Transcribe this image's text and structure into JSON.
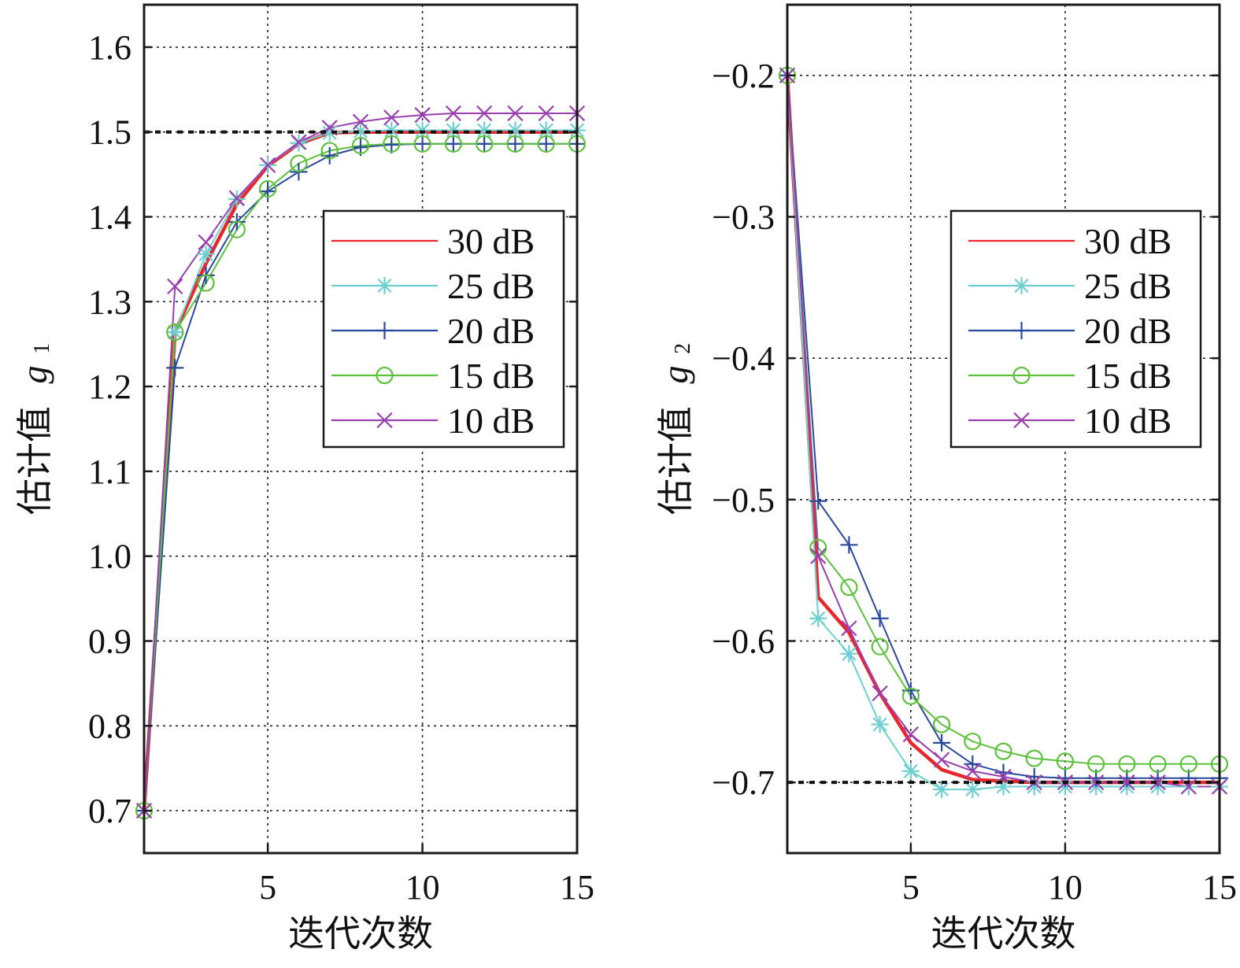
{
  "chart_data": [
    {
      "type": "line",
      "id": "g1",
      "title": "",
      "xlabel": "迭代次数",
      "ylabel": "估计值",
      "ylabel_symbol": "g",
      "ylabel_subscript": "1",
      "xlim": [
        1,
        15
      ],
      "ylim": [
        0.65,
        1.65
      ],
      "xticks": [
        5,
        10,
        15
      ],
      "xtick_labels": [
        "5",
        "10",
        "15"
      ],
      "yticks": [
        0.7,
        0.8,
        0.9,
        1.0,
        1.1,
        1.2,
        1.3,
        1.4,
        1.5,
        1.6
      ],
      "ytick_labels": [
        "0.7",
        "0.8",
        "0.9",
        "1.0",
        "1.1",
        "1.2",
        "1.3",
        "1.4",
        "1.5",
        "1.6"
      ],
      "grid": true,
      "legend_position": "center-right",
      "reference_line": {
        "value": 1.5,
        "style": "dotted",
        "color": "#111111"
      },
      "x": [
        1,
        2,
        3,
        4,
        5,
        6,
        7,
        8,
        9,
        10,
        11,
        12,
        13,
        14,
        15
      ],
      "series": [
        {
          "name": "30 dB",
          "color": "#e8262b",
          "marker": "none",
          "width": "thick",
          "values": [
            0.7,
            1.264,
            1.345,
            1.415,
            1.46,
            1.486,
            1.499,
            1.5,
            1.5,
            1.5,
            1.5,
            1.5,
            1.5,
            1.5,
            1.5
          ]
        },
        {
          "name": "25 dB",
          "color": "#6fcfd0",
          "marker": "asterisk",
          "width": "thin",
          "values": [
            0.7,
            1.264,
            1.356,
            1.421,
            1.461,
            1.487,
            1.499,
            1.501,
            1.502,
            1.502,
            1.502,
            1.502,
            1.502,
            1.502,
            1.502
          ]
        },
        {
          "name": "20 dB",
          "color": "#2a4a9e",
          "marker": "plus",
          "width": "thin",
          "values": [
            0.7,
            1.222,
            1.331,
            1.394,
            1.43,
            1.453,
            1.472,
            1.482,
            1.485,
            1.486,
            1.486,
            1.486,
            1.486,
            1.486,
            1.486
          ]
        },
        {
          "name": "15 dB",
          "color": "#5ec13c",
          "marker": "circle",
          "width": "thin",
          "values": [
            0.7,
            1.264,
            1.322,
            1.385,
            1.433,
            1.463,
            1.478,
            1.484,
            1.486,
            1.486,
            1.486,
            1.486,
            1.486,
            1.486,
            1.486
          ]
        },
        {
          "name": "10 dB",
          "color": "#9b3fb0",
          "marker": "x",
          "width": "thin",
          "values": [
            0.7,
            1.318,
            1.37,
            1.422,
            1.461,
            1.488,
            1.505,
            1.512,
            1.517,
            1.52,
            1.522,
            1.522,
            1.522,
            1.522,
            1.522
          ]
        }
      ]
    },
    {
      "type": "line",
      "id": "g2",
      "title": "",
      "xlabel": "迭代次数",
      "ylabel": "估计值",
      "ylabel_symbol": "g",
      "ylabel_subscript": "2",
      "xlim": [
        1,
        15
      ],
      "ylim": [
        -0.75,
        -0.15
      ],
      "xticks": [
        5,
        10,
        15
      ],
      "xtick_labels": [
        "5",
        "10",
        "15"
      ],
      "yticks": [
        -0.7,
        -0.6,
        -0.5,
        -0.4,
        -0.3,
        -0.2
      ],
      "ytick_labels": [
        "−0.7",
        "−0.6",
        "−0.5",
        "−0.4",
        "−0.3",
        "−0.2"
      ],
      "grid": true,
      "legend_position": "center-right",
      "reference_line": {
        "value": -0.7,
        "style": "dotted",
        "color": "#111111"
      },
      "x": [
        1,
        2,
        3,
        4,
        5,
        6,
        7,
        8,
        9,
        10,
        11,
        12,
        13,
        14,
        15
      ],
      "series": [
        {
          "name": "30 dB",
          "color": "#e8262b",
          "marker": "none",
          "width": "thick",
          "values": [
            -0.2,
            -0.569,
            -0.594,
            -0.637,
            -0.672,
            -0.691,
            -0.698,
            -0.699,
            -0.7,
            -0.7,
            -0.7,
            -0.7,
            -0.7,
            -0.7,
            -0.7
          ]
        },
        {
          "name": "25 dB",
          "color": "#6fcfd0",
          "marker": "asterisk",
          "width": "thin",
          "values": [
            -0.2,
            -0.584,
            -0.609,
            -0.659,
            -0.692,
            -0.705,
            -0.705,
            -0.703,
            -0.703,
            -0.703,
            -0.703,
            -0.703,
            -0.703,
            -0.703,
            -0.703
          ]
        },
        {
          "name": "20 dB",
          "color": "#2a4a9e",
          "marker": "plus",
          "width": "thin",
          "values": [
            -0.2,
            -0.501,
            -0.532,
            -0.584,
            -0.635,
            -0.672,
            -0.687,
            -0.693,
            -0.696,
            -0.697,
            -0.697,
            -0.697,
            -0.697,
            -0.697,
            -0.697
          ]
        },
        {
          "name": "15 dB",
          "color": "#5ec13c",
          "marker": "circle",
          "width": "thin",
          "values": [
            -0.2,
            -0.534,
            -0.562,
            -0.604,
            -0.639,
            -0.659,
            -0.671,
            -0.678,
            -0.683,
            -0.685,
            -0.687,
            -0.687,
            -0.687,
            -0.687,
            -0.687
          ]
        },
        {
          "name": "10 dB",
          "color": "#9b3fb0",
          "marker": "x",
          "width": "thin",
          "values": [
            -0.2,
            -0.54,
            -0.591,
            -0.637,
            -0.666,
            -0.684,
            -0.692,
            -0.696,
            -0.7,
            -0.7,
            -0.7,
            -0.7,
            -0.7,
            -0.703,
            -0.703
          ]
        }
      ]
    }
  ]
}
